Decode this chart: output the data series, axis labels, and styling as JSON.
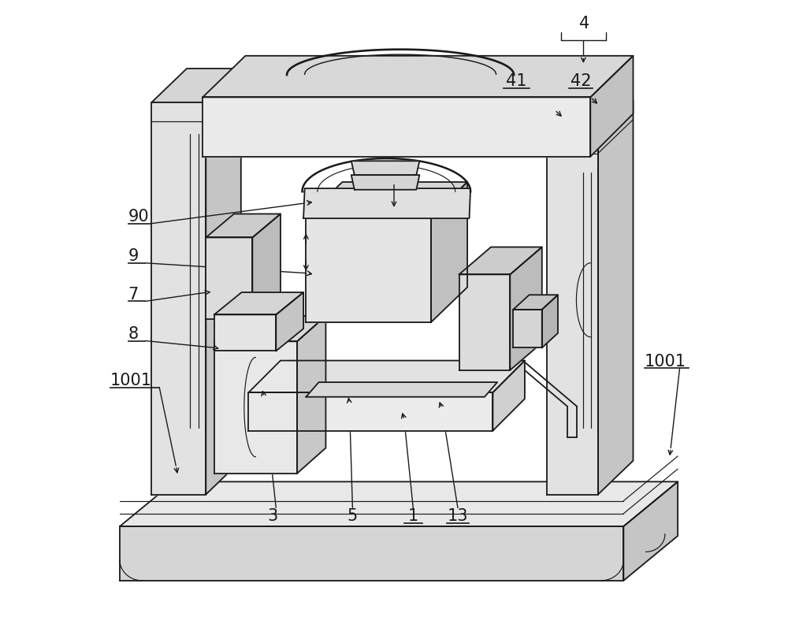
{
  "background_color": "#ffffff",
  "line_color": "#1a1a1a",
  "line_width": 1.3,
  "figsize": [
    10.0,
    8.12
  ],
  "dpi": 100
}
